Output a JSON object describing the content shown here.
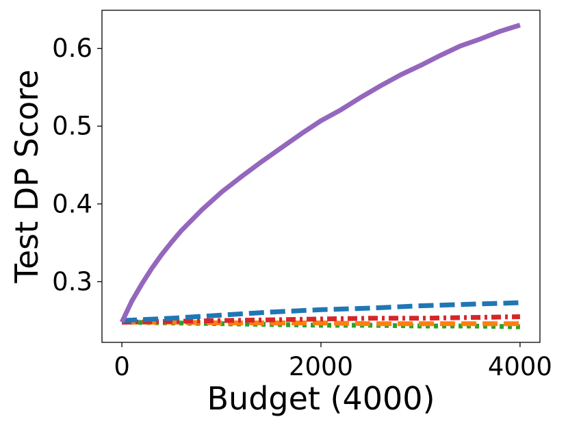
{
  "chart_data": {
    "type": "line",
    "title": "",
    "xlabel": "Budget (4000)",
    "ylabel": "Test DP Score",
    "xlim": [
      -200,
      4200
    ],
    "ylim": [
      0.222,
      0.649
    ],
    "xticks": [
      0,
      2000,
      4000
    ],
    "xtick_labels": [
      "0",
      "2000",
      "4000"
    ],
    "yticks": [
      0.3,
      0.4,
      0.5,
      0.6
    ],
    "ytick_labels": [
      "0.3",
      "0.4",
      "0.5",
      "0.6"
    ],
    "grid": false,
    "legend": "none",
    "series": [
      {
        "color": "#9467bd",
        "style": "solid",
        "x": [
          0,
          100,
          200,
          300,
          400,
          500,
          600,
          800,
          1000,
          1200,
          1400,
          1600,
          1800,
          2000,
          2200,
          2400,
          2600,
          2800,
          3000,
          3200,
          3400,
          3600,
          3800,
          4000
        ],
        "y": [
          0.248,
          0.275,
          0.297,
          0.317,
          0.335,
          0.351,
          0.366,
          0.392,
          0.415,
          0.435,
          0.454,
          0.472,
          0.49,
          0.507,
          0.521,
          0.537,
          0.552,
          0.566,
          0.578,
          0.591,
          0.603,
          0.612,
          0.622,
          0.63
        ]
      },
      {
        "color": "#1f77b4",
        "style": "dashed",
        "x": [
          0,
          500,
          1000,
          1500,
          2000,
          2500,
          3000,
          3500,
          4000
        ],
        "y": [
          0.25,
          0.253,
          0.257,
          0.261,
          0.264,
          0.266,
          0.269,
          0.271,
          0.273
        ]
      },
      {
        "color": "#d62728",
        "style": "dashdot",
        "x": [
          0,
          500,
          1000,
          1500,
          2000,
          2500,
          3000,
          3500,
          4000
        ],
        "y": [
          0.248,
          0.249,
          0.25,
          0.251,
          0.252,
          0.253,
          0.253,
          0.254,
          0.255
        ]
      },
      {
        "color": "#ff7f0e",
        "style": "dashed",
        "x": [
          0,
          500,
          1000,
          1500,
          2000,
          2500,
          3000,
          3500,
          4000
        ],
        "y": [
          0.248,
          0.248,
          0.247,
          0.247,
          0.247,
          0.246,
          0.246,
          0.246,
          0.246
        ]
      },
      {
        "color": "#2ca02c",
        "style": "dotted",
        "x": [
          0,
          500,
          1000,
          1500,
          2000,
          2500,
          3000,
          3500,
          4000
        ],
        "y": [
          0.248,
          0.247,
          0.246,
          0.245,
          0.244,
          0.244,
          0.243,
          0.243,
          0.242
        ]
      }
    ]
  }
}
